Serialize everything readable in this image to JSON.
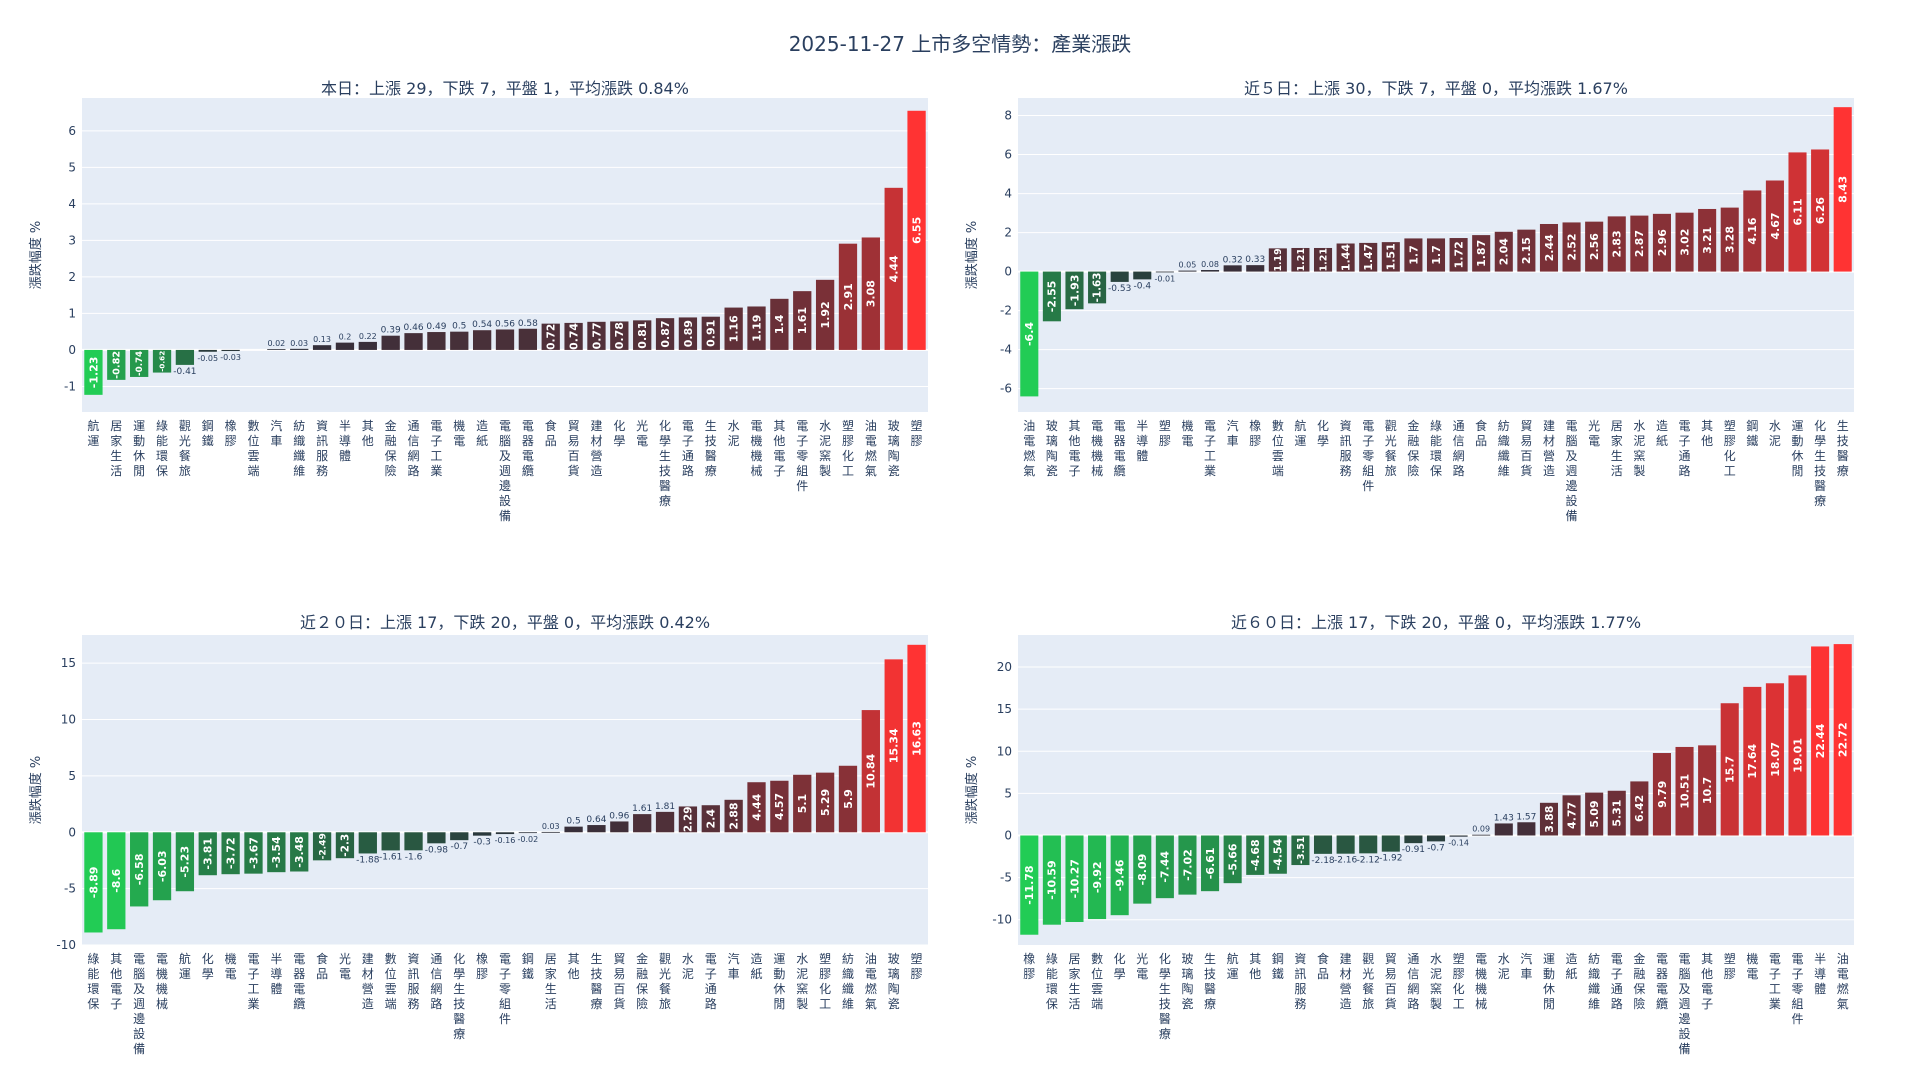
{
  "page_title": "2025-11-27 上市多空情勢：產業漲跌",
  "colors": {
    "plot_bg": "#e5ecf6",
    "grid": "#ffffff",
    "text": "#2a3f5f",
    "up_max": "#ff3333",
    "up_min": "#2b2f3a",
    "down_max": "#22cc55",
    "down_min": "#2b2f3a"
  },
  "chart_data": [
    {
      "type": "bar",
      "title": "本日：上漲 29，下跌 7，平盤 1，平均漲跌 0.84%",
      "ylabel": "漲跌幅度 %",
      "ylim": [
        -1.7,
        6.9
      ],
      "yticks": [
        -1,
        0,
        1,
        2,
        3,
        4,
        5,
        6
      ],
      "categories": [
        "航運",
        "居家生活",
        "運動休閒",
        "綠能環保",
        "觀光餐旅",
        "鋼鐵",
        "橡膠",
        "數位雲端",
        "汽車",
        "紡織纖維",
        "資訊服務",
        "半導體",
        "其他",
        "金融保險",
        "通信網路",
        "電子工業",
        "機電",
        "造紙",
        "電腦及週邊設備",
        "電器電纜",
        "食品",
        "貿易百貨",
        "建材營造",
        "化學",
        "光電",
        "化學生技醫療",
        "電子通路",
        "生技醫療",
        "水泥",
        "電機機械",
        "其他電子",
        "電子零組件",
        "水泥窯製",
        "塑膠化工",
        "油電燃氣",
        "玻璃陶瓷",
        "塑膠"
      ],
      "values": [
        -1.23,
        -0.82,
        -0.74,
        -0.62,
        -0.41,
        -0.05,
        -0.03,
        0,
        0.02,
        0.03,
        0.13,
        0.2,
        0.22,
        0.39,
        0.46,
        0.49,
        0.5,
        0.54,
        0.56,
        0.58,
        0.72,
        0.74,
        0.77,
        0.78,
        0.81,
        0.87,
        0.89,
        0.91,
        1.16,
        1.19,
        1.4,
        1.61,
        1.92,
        2.91,
        3.08,
        4.44,
        6.55
      ],
      "labels": [
        "-1.23",
        "-0.82",
        "-0.74",
        "-0.62",
        "-0.41",
        "-0.05",
        "-0.03",
        "",
        "0.02",
        "0.03",
        "0.13",
        "0.2",
        "0.22",
        "0.39",
        "0.46",
        "0.49",
        "0.5",
        "0.54",
        "0.56",
        "0.58",
        "0.72",
        "0.74",
        "0.77",
        "0.78",
        "0.81",
        "0.87",
        "0.89",
        "0.91",
        "1.16",
        "1.19",
        "1.4",
        "1.61",
        "1.92",
        "2.91",
        "3.08",
        "4.44",
        "6.55"
      ]
    },
    {
      "type": "bar",
      "title": "近５日：上漲 30，下跌 7，平盤 0，平均漲跌 1.67%",
      "ylabel": "漲跌幅度 %",
      "ylim": [
        -7.2,
        8.9
      ],
      "yticks": [
        -6,
        -4,
        -2,
        0,
        2,
        4,
        6,
        8
      ],
      "categories": [
        "油電燃氣",
        "玻璃陶瓷",
        "其他電子",
        "電機機械",
        "電器電纜",
        "半導體",
        "塑膠",
        "機電",
        "電子工業",
        "汽車",
        "橡膠",
        "數位雲端",
        "航運",
        "化學",
        "資訊服務",
        "電子零組件",
        "觀光餐旅",
        "金融保險",
        "綠能環保",
        "通信網路",
        "食品",
        "紡織纖維",
        "貿易百貨",
        "建材營造",
        "電腦及週邊設備",
        "光電",
        "居家生活",
        "水泥窯製",
        "造紙",
        "電子通路",
        "其他",
        "塑膠化工",
        "鋼鐵",
        "水泥",
        "運動休閒",
        "化學生技醫療",
        "生技醫療"
      ],
      "values": [
        -6.4,
        -2.55,
        -1.93,
        -1.63,
        -0.53,
        -0.4,
        -0.01,
        0.05,
        0.08,
        0.32,
        0.33,
        1.19,
        1.21,
        1.21,
        1.44,
        1.47,
        1.51,
        1.7,
        1.7,
        1.72,
        1.87,
        2.04,
        2.15,
        2.44,
        2.52,
        2.56,
        2.83,
        2.87,
        2.96,
        3.02,
        3.21,
        3.28,
        4.16,
        4.67,
        6.11,
        6.26,
        8.43
      ],
      "labels": [
        "-6.4",
        "-2.55",
        "-1.93",
        "-1.63",
        "-0.53",
        "-0.4",
        "-0.01",
        "0.05",
        "0.08",
        "0.32",
        "0.33",
        "1.19",
        "1.21",
        "1.21",
        "1.44",
        "1.47",
        "1.51",
        "1.7",
        "1.7",
        "1.72",
        "1.87",
        "2.04",
        "2.15",
        "2.44",
        "2.52",
        "2.56",
        "2.83",
        "2.87",
        "2.96",
        "3.02",
        "3.21",
        "3.28",
        "4.16",
        "4.67",
        "6.11",
        "6.26",
        "8.43"
      ]
    },
    {
      "type": "bar",
      "title": "近２０日：上漲 17，下跌 20，平盤 0，平均漲跌 0.42%",
      "ylabel": "漲跌幅度 %",
      "ylim": [
        -10,
        17.5
      ],
      "yticks": [
        -10,
        -5,
        0,
        5,
        10,
        15
      ],
      "categories": [
        "綠能環保",
        "其他電子",
        "電腦及週邊設備",
        "電機機械",
        "航運",
        "化學",
        "機電",
        "電子工業",
        "半導體",
        "電器電纜",
        "食品",
        "光電",
        "建材營造",
        "數位雲端",
        "資訊服務",
        "通信網路",
        "化學生技醫療",
        "橡膠",
        "電子零組件",
        "鋼鐵",
        "居家生活",
        "其他",
        "生技醫療",
        "貿易百貨",
        "金融保險",
        "觀光餐旅",
        "水泥",
        "電子通路",
        "汽車",
        "造紙",
        "運動休閒",
        "水泥窯製",
        "塑膠化工",
        "紡織纖維",
        "油電燃氣",
        "玻璃陶瓷",
        "塑膠"
      ],
      "values": [
        -8.89,
        -8.6,
        -6.58,
        -6.03,
        -5.23,
        -3.81,
        -3.72,
        -3.67,
        -3.54,
        -3.48,
        -2.49,
        -2.3,
        -1.88,
        -1.61,
        -1.6,
        -0.98,
        -0.7,
        -0.3,
        -0.16,
        -0.02,
        0.03,
        0.5,
        0.64,
        0.96,
        1.61,
        1.81,
        2.29,
        2.4,
        2.88,
        4.44,
        4.57,
        5.1,
        5.29,
        5.9,
        10.84,
        15.34,
        16.63
      ],
      "labels": [
        "-8.89",
        "-8.6",
        "-6.58",
        "-6.03",
        "-5.23",
        "-3.81",
        "-3.72",
        "-3.67",
        "-3.54",
        "-3.48",
        "-2.49",
        "-2.3",
        "-1.88",
        "-1.61",
        "-1.6",
        "-0.98",
        "-0.7",
        "-0.3",
        "-0.16",
        "-0.02",
        "0.03",
        "0.5",
        "0.64",
        "0.96",
        "1.61",
        "1.81",
        "2.29",
        "2.4",
        "2.88",
        "4.44",
        "4.57",
        "5.1",
        "5.29",
        "5.9",
        "10.84",
        "15.34",
        "16.63"
      ]
    },
    {
      "type": "bar",
      "title": "近６０日：上漲 17，下跌 20，平盤 0，平均漲跌 1.77%",
      "ylabel": "漲跌幅度 %",
      "ylim": [
        -13,
        23.8
      ],
      "yticks": [
        -10,
        -5,
        0,
        5,
        10,
        15,
        20
      ],
      "categories": [
        "橡膠",
        "綠能環保",
        "居家生活",
        "數位雲端",
        "化學",
        "光電",
        "化學生技醫療",
        "玻璃陶瓷",
        "生技醫療",
        "航運",
        "其他",
        "鋼鐵",
        "資訊服務",
        "食品",
        "建材營造",
        "觀光餐旅",
        "貿易百貨",
        "通信網路",
        "水泥窯製",
        "塑膠化工",
        "電機機械",
        "水泥",
        "汽車",
        "運動休閒",
        "造紙",
        "紡織纖維",
        "電子通路",
        "金融保險",
        "電器電纜",
        "電腦及週邊設備",
        "其他電子",
        "塑膠",
        "機電",
        "電子工業",
        "電子零組件",
        "半導體",
        "油電燃氣"
      ],
      "values": [
        -11.78,
        -10.59,
        -10.27,
        -9.92,
        -9.46,
        -8.09,
        -7.44,
        -7.02,
        -6.61,
        -5.66,
        -4.68,
        -4.54,
        -3.51,
        -2.18,
        -2.16,
        -2.12,
        -1.92,
        -0.91,
        -0.7,
        -0.14,
        0.09,
        1.43,
        1.57,
        3.88,
        4.77,
        5.09,
        5.31,
        6.42,
        9.79,
        10.51,
        10.7,
        15.7,
        17.64,
        18.07,
        19.01,
        22.44,
        22.72
      ],
      "labels": [
        "-11.78",
        "-10.59",
        "-10.27",
        "-9.92",
        "-9.46",
        "-8.09",
        "-7.44",
        "-7.02",
        "-6.61",
        "-5.66",
        "-4.68",
        "-4.54",
        "-3.51",
        "-2.18",
        "-2.16",
        "-2.12",
        "-1.92",
        "-0.91",
        "-0.7",
        "-0.14",
        "0.09",
        "1.43",
        "1.57",
        "3.88",
        "4.77",
        "5.09",
        "5.31",
        "6.42",
        "9.79",
        "10.51",
        "10.7",
        "15.7",
        "17.64",
        "18.07",
        "19.01",
        "22.44",
        "22.72"
      ]
    }
  ]
}
